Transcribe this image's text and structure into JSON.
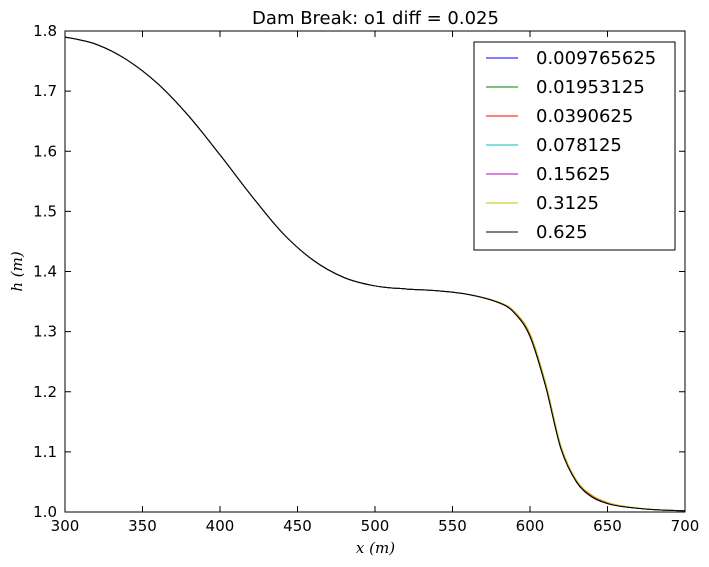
{
  "chart_data": {
    "type": "line",
    "title": "Dam Break: o1 diff = 0.025",
    "xlabel": "x (m)",
    "ylabel": "h (m)",
    "xlim": [
      300,
      700
    ],
    "ylim": [
      1.0,
      1.8
    ],
    "xticks": [
      "300",
      "350",
      "400",
      "450",
      "500",
      "550",
      "600",
      "650",
      "700"
    ],
    "yticks": [
      "1.0",
      "1.1",
      "1.2",
      "1.3",
      "1.4",
      "1.5",
      "1.6",
      "1.7",
      "1.8"
    ],
    "grid": false,
    "legend_position": "top-right",
    "x": [
      300,
      320,
      340,
      360,
      380,
      400,
      420,
      440,
      460,
      480,
      500,
      520,
      540,
      560,
      580,
      590,
      600,
      610,
      620,
      630,
      640,
      650,
      660,
      680,
      700
    ],
    "series": [
      {
        "name": "0.009765625",
        "color": "#0000ff",
        "values": [
          1.79,
          1.778,
          1.752,
          1.712,
          1.658,
          1.594,
          1.527,
          1.465,
          1.419,
          1.39,
          1.376,
          1.371,
          1.368,
          1.362,
          1.348,
          1.331,
          1.292,
          1.21,
          1.105,
          1.05,
          1.025,
          1.014,
          1.009,
          1.004,
          1.002
        ]
      },
      {
        "name": "0.01953125",
        "color": "#008000",
        "values": [
          1.79,
          1.778,
          1.752,
          1.712,
          1.658,
          1.594,
          1.527,
          1.465,
          1.419,
          1.39,
          1.376,
          1.371,
          1.368,
          1.362,
          1.348,
          1.331,
          1.292,
          1.21,
          1.105,
          1.05,
          1.025,
          1.014,
          1.009,
          1.004,
          1.002
        ]
      },
      {
        "name": "0.0390625",
        "color": "#ff0000",
        "values": [
          1.79,
          1.778,
          1.752,
          1.712,
          1.658,
          1.594,
          1.527,
          1.465,
          1.419,
          1.39,
          1.376,
          1.371,
          1.368,
          1.362,
          1.349,
          1.333,
          1.296,
          1.214,
          1.108,
          1.052,
          1.027,
          1.015,
          1.009,
          1.004,
          1.002
        ]
      },
      {
        "name": "0.078125",
        "color": "#00bfbf",
        "values": [
          1.79,
          1.778,
          1.752,
          1.712,
          1.658,
          1.594,
          1.527,
          1.465,
          1.419,
          1.39,
          1.376,
          1.371,
          1.368,
          1.362,
          1.348,
          1.331,
          1.292,
          1.21,
          1.105,
          1.05,
          1.025,
          1.014,
          1.009,
          1.004,
          1.002
        ]
      },
      {
        "name": "0.15625",
        "color": "#bf00bf",
        "values": [
          1.79,
          1.778,
          1.752,
          1.712,
          1.658,
          1.594,
          1.527,
          1.465,
          1.419,
          1.39,
          1.376,
          1.371,
          1.368,
          1.362,
          1.348,
          1.331,
          1.292,
          1.21,
          1.105,
          1.05,
          1.025,
          1.014,
          1.009,
          1.004,
          1.002
        ]
      },
      {
        "name": "0.3125",
        "color": "#bfbf00",
        "values": [
          1.79,
          1.778,
          1.752,
          1.712,
          1.658,
          1.594,
          1.527,
          1.465,
          1.419,
          1.39,
          1.376,
          1.371,
          1.368,
          1.362,
          1.349,
          1.333,
          1.297,
          1.216,
          1.11,
          1.053,
          1.028,
          1.016,
          1.01,
          1.004,
          1.002
        ]
      },
      {
        "name": "0.625",
        "color": "#000000",
        "values": [
          1.79,
          1.778,
          1.752,
          1.712,
          1.658,
          1.594,
          1.527,
          1.465,
          1.419,
          1.39,
          1.376,
          1.371,
          1.368,
          1.362,
          1.348,
          1.331,
          1.292,
          1.21,
          1.105,
          1.05,
          1.025,
          1.014,
          1.009,
          1.004,
          1.002
        ]
      }
    ]
  }
}
